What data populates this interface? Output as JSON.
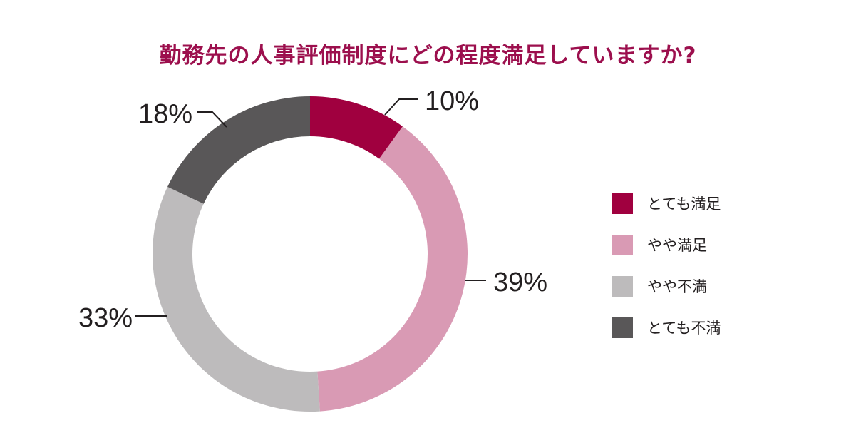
{
  "title": "勤務先の人事評価制度にどの程度満足していますか?",
  "chart_data": {
    "type": "pie",
    "title": "勤務先の人事評価制度にどの程度満足していますか?",
    "unit": "%",
    "legend_position": "right",
    "categories": [
      "とても満足",
      "やや満足",
      "やや不満",
      "とても不満"
    ],
    "values": [
      10,
      39,
      33,
      18
    ],
    "value_labels": [
      "10%",
      "39%",
      "33%",
      "18%"
    ],
    "colors": [
      "#a0003f",
      "#d99ab4",
      "#bdbbbc",
      "#595758"
    ]
  },
  "legend": {
    "items": [
      {
        "label": "とても満足",
        "color": "#a0003f"
      },
      {
        "label": "やや満足",
        "color": "#d99ab4"
      },
      {
        "label": "やや不満",
        "color": "#bdbbbc"
      },
      {
        "label": "とても不満",
        "color": "#595758"
      }
    ]
  }
}
